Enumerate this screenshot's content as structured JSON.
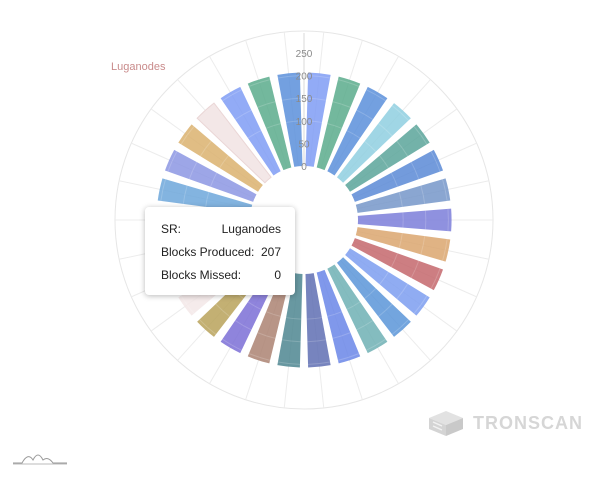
{
  "chart_data": {
    "type": "bar",
    "polar": true,
    "title": "",
    "radial_axis": {
      "range": [
        0,
        250
      ],
      "ticks": [
        "0",
        "50",
        "100",
        "150",
        "200",
        "250"
      ]
    },
    "categories": [
      "",
      "",
      "",
      "",
      "",
      "",
      "",
      "",
      "",
      "",
      "",
      "",
      "",
      "",
      "",
      "",
      "",
      "",
      "",
      "",
      "",
      "",
      "",
      "",
      "",
      "",
      "Luganodes",
      "",
      "",
      ""
    ],
    "values": [
      207,
      207,
      207,
      207,
      207,
      207,
      207,
      207,
      207,
      207,
      207,
      207,
      207,
      207,
      207,
      207,
      207,
      207,
      207,
      207,
      207,
      207,
      207,
      207,
      207,
      207,
      207,
      207,
      207,
      207
    ],
    "colors": [
      "#7f9cf5",
      "#5aab8c",
      "#5b8fdb",
      "#8fcfe0",
      "#5aa49a",
      "#5b89d6",
      "#7697c9",
      "#7b7ed9",
      "#dba66e",
      "#c4676c",
      "#7d9ef0",
      "#5b95d8",
      "#6eb0b4",
      "#6a86e8",
      "#5f6fb3",
      "#4e8690",
      "#ab8272",
      "#7b6fd6",
      "#b8a25a",
      "#f3e7e7",
      "#6d96d8",
      "#9c84e8",
      "#6ecde8",
      "#6da7db",
      "#8c96e3",
      "#dbb26e",
      "#a8c8ea",
      "#7f9cf5",
      "#5aab8c",
      "#5b8fdb"
    ],
    "highlight_color": "#f3e7e7",
    "highlighted_category": "Luganodes",
    "grid": true
  },
  "tooltip": {
    "sr_label": "SR:",
    "sr_value": "Luganodes",
    "produced_label": "Blocks Produced:",
    "produced_value": "207",
    "missed_label": "Blocks Missed:",
    "missed_value": "0"
  },
  "watermark": {
    "text": "TRONSCAN"
  }
}
